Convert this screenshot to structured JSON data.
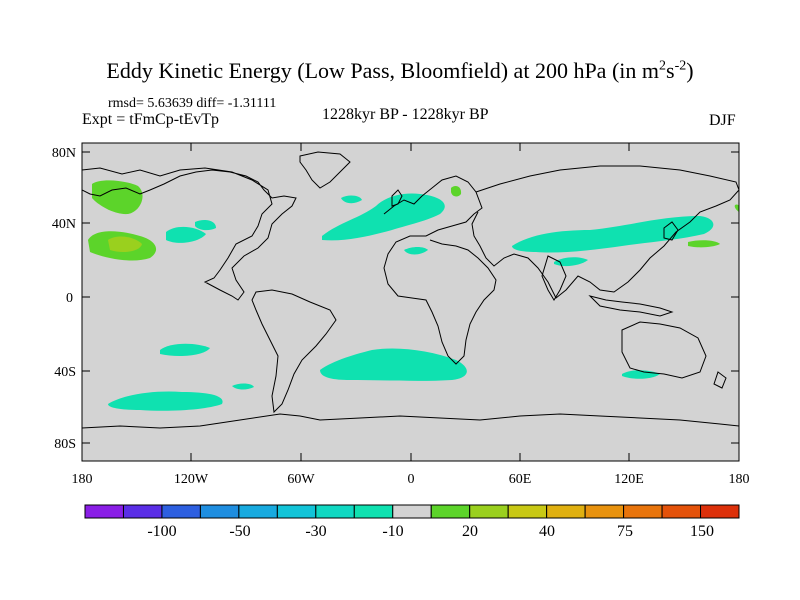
{
  "header": {
    "title_main": "Eddy Kinetic Energy (Low Pass, Bloomfield) at 200 hPa (in m",
    "title_sup1": "2",
    "title_mid": "s",
    "title_sup2": "-2",
    "title_end": ")",
    "stats": "rmsd= 5.63639 diff= -1.31111",
    "experiment": "Expt = tFmCp-tEvTp",
    "period": "1228kyr BP - 1228kyr BP",
    "season": "DJF"
  },
  "map": {
    "projection": "cylindrical-equidistant",
    "lon_range": [
      -180,
      180
    ],
    "lat_range": [
      -90,
      90
    ],
    "ocean_land_color": "#d3d3d3",
    "y_ticks": [
      "80N",
      "40N",
      "0",
      "40S",
      "80S"
    ],
    "x_ticks": [
      "180",
      "120W",
      "60W",
      "0",
      "60E",
      "120E",
      "180"
    ],
    "anomaly_regions": [
      {
        "name": "north-pacific-west",
        "lon": -166,
        "lat": 30,
        "level": "20"
      },
      {
        "name": "north-pacific-core",
        "lon": -163,
        "lat": 29,
        "level": "40"
      },
      {
        "name": "bering-sea",
        "lon": -165,
        "lat": 50,
        "level": "20"
      },
      {
        "name": "east-pacific-north",
        "lon": -120,
        "lat": 39,
        "level": "-10"
      },
      {
        "name": "north-atlantic",
        "lon": -20,
        "lat": 45,
        "level": "-10"
      },
      {
        "name": "asia-jet",
        "lon": 90,
        "lat": 32,
        "level": "-10"
      },
      {
        "name": "south-pacific",
        "lon": -130,
        "lat": -28,
        "level": "-10"
      },
      {
        "name": "south-atlantic",
        "lon": -20,
        "lat": -38,
        "level": "-10"
      },
      {
        "name": "southern-ocean",
        "lon": -110,
        "lat": -58,
        "level": "-10"
      },
      {
        "name": "tasman",
        "lon": 130,
        "lat": -40,
        "level": "-10"
      },
      {
        "name": "scandinavia",
        "lon": 25,
        "lat": 58,
        "level": "20"
      },
      {
        "name": "japan-east",
        "lon": 160,
        "lat": 32,
        "level": "20"
      }
    ]
  },
  "colorbar": {
    "colors": [
      "#8a1ee6",
      "#5a2ee6",
      "#2d5fe0",
      "#1f8ee0",
      "#18aadf",
      "#12c4d8",
      "#10d8c2",
      "#0fe1b0",
      "#d3d3d3",
      "#5cd42a",
      "#9ad01e",
      "#c8c814",
      "#e0b010",
      "#e8920e",
      "#e8740c",
      "#e4520a",
      "#dc300a"
    ],
    "labels": [
      "-100",
      "-50",
      "-30",
      "-10",
      "20",
      "40",
      "75",
      "150"
    ]
  }
}
